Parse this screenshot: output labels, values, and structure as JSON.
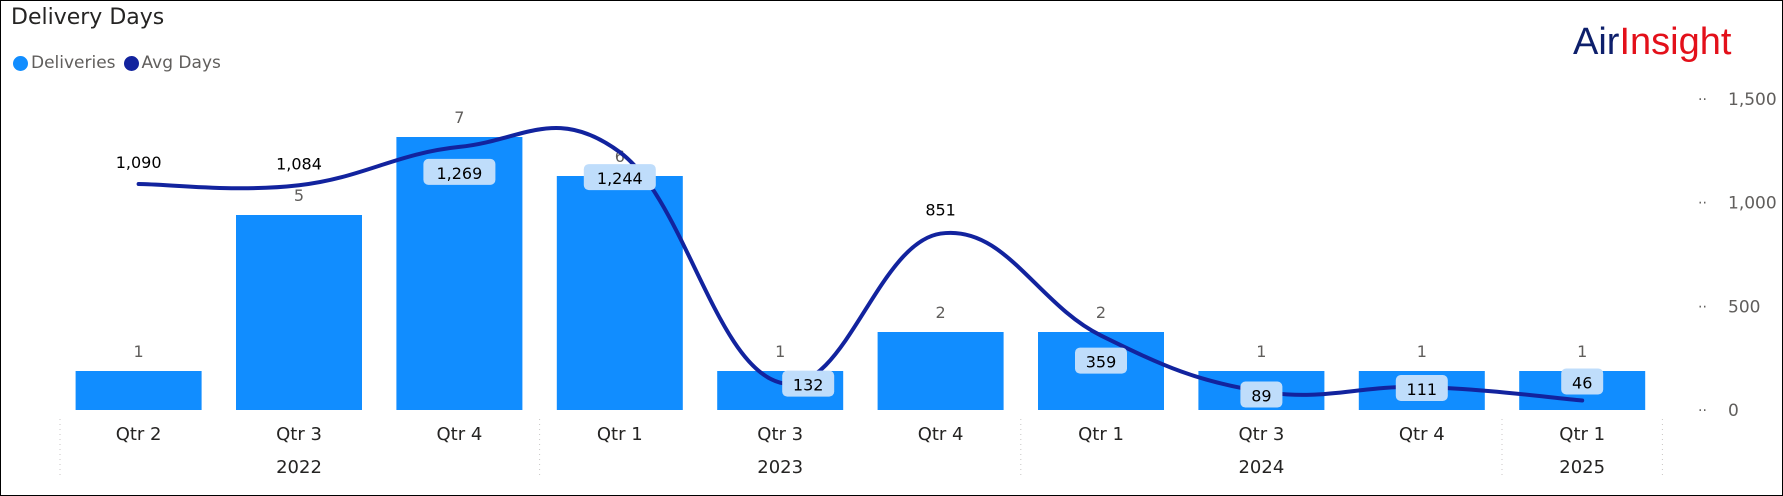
{
  "title": "Delivery Days",
  "logo": {
    "part1": "Air",
    "part2": "Insight"
  },
  "colors": {
    "bars": "#118DFF",
    "line": "#12239E",
    "label_box": "#BFDDFB"
  },
  "chart_data": {
    "type": "bar+line",
    "title": "Delivery Days",
    "legend": [
      {
        "name": "Deliveries",
        "color": "#118DFF"
      },
      {
        "name": "Avg Days",
        "color": "#12239E"
      }
    ],
    "legend_position": "top-left",
    "categories": [
      "Qtr 2",
      "Qtr 3",
      "Qtr 4",
      "Qtr 1",
      "Qtr 3",
      "Qtr 4",
      "Qtr 1",
      "Qtr 3",
      "Qtr 4",
      "Qtr 1"
    ],
    "year_groups": [
      {
        "year": "2022",
        "count": 3
      },
      {
        "year": "2023",
        "count": 3
      },
      {
        "year": "2024",
        "count": 3
      },
      {
        "year": "2025",
        "count": 1
      }
    ],
    "series": [
      {
        "name": "Deliveries",
        "type": "bar",
        "values": [
          1,
          5,
          7,
          6,
          1,
          2,
          2,
          1,
          1,
          1
        ],
        "labels": [
          "1",
          "5",
          "7",
          "6",
          "1",
          "2",
          "2",
          "1",
          "1",
          "1"
        ]
      },
      {
        "name": "Avg Days",
        "type": "line",
        "axis": "right",
        "values": [
          1090,
          1084,
          1269,
          1244,
          132,
          851,
          359,
          89,
          111,
          46
        ],
        "labels": [
          "1,090",
          "1,084",
          "1,269",
          "1,244",
          "132",
          "851",
          "359",
          "89",
          "111",
          "46"
        ]
      }
    ],
    "y_right": {
      "ticks": [
        "0",
        "500",
        "1,000",
        "1,500"
      ],
      "tick_values": [
        0,
        500,
        1000,
        1500
      ],
      "range": [
        0,
        1500
      ]
    },
    "y_left_range": [
      0,
      7.9
    ]
  }
}
